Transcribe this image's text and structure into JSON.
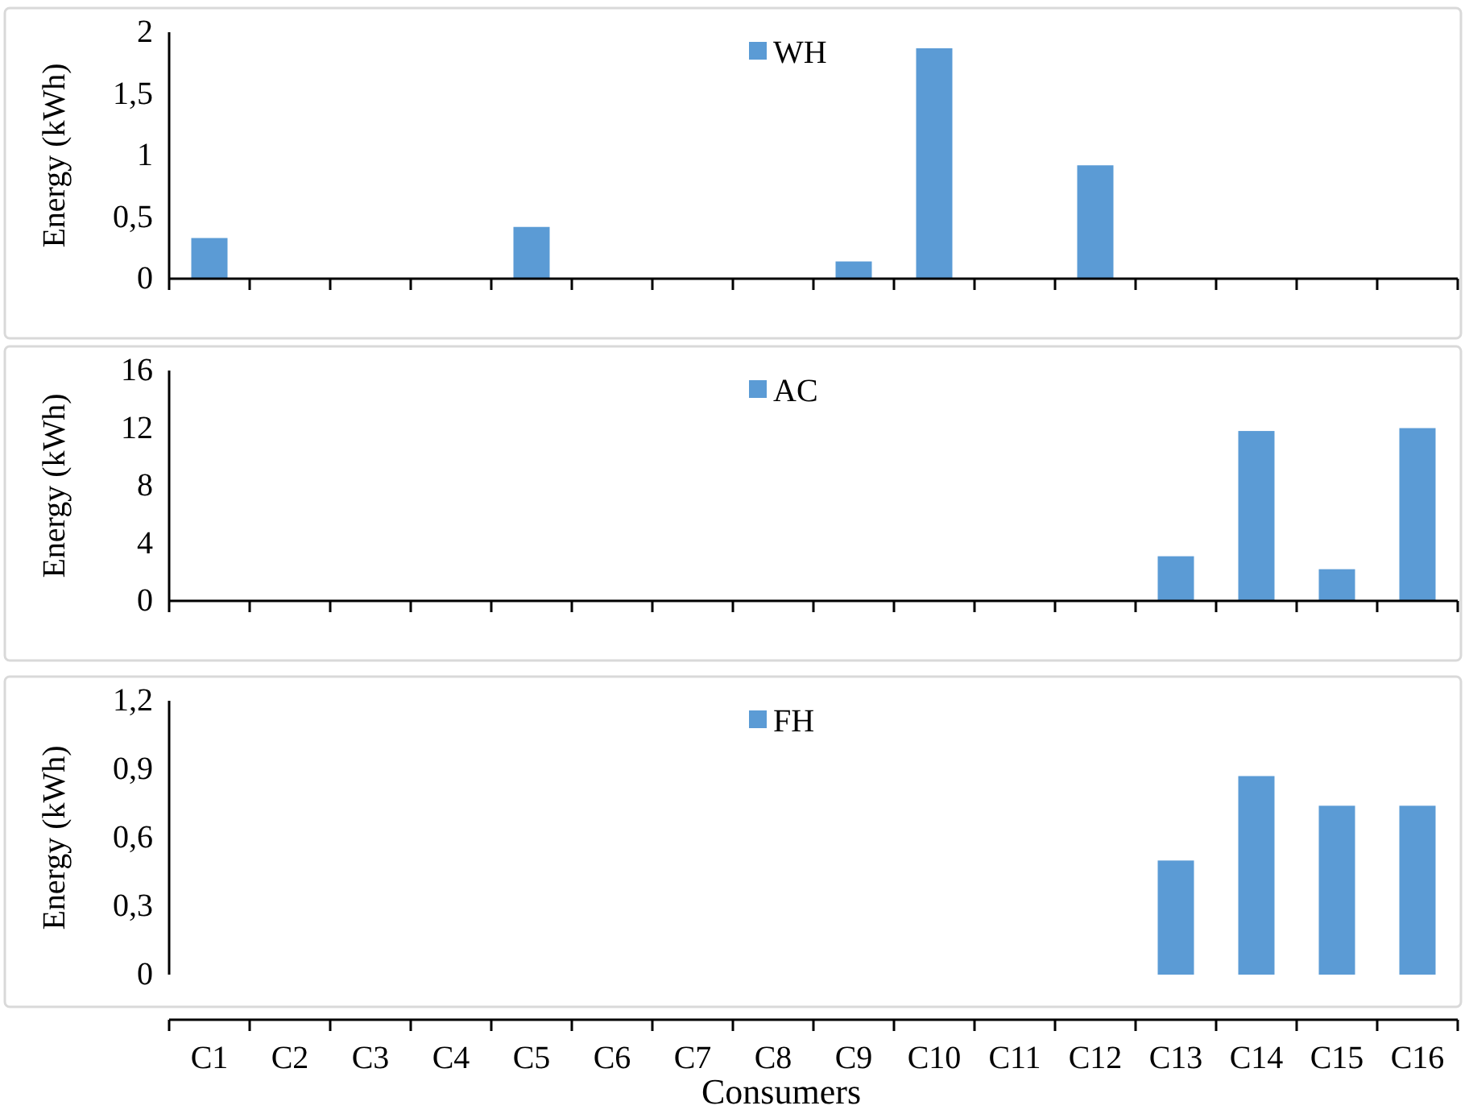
{
  "chart_data": [
    {
      "type": "bar",
      "categories": [
        null,
        null,
        null,
        null,
        null,
        null,
        null,
        null,
        null,
        null,
        null,
        null,
        null,
        null,
        null,
        null
      ],
      "ylabel": "Energy (kWh)",
      "ylim": [
        0,
        2
      ],
      "yticks": [
        0,
        {
          "value": 0.5,
          "label": "0,5"
        },
        1,
        {
          "value": 1.5,
          "label": "1,5"
        },
        2
      ],
      "legend": "top",
      "tick_labels": "y",
      "series": [
        {
          "name": "WH",
          "color": "#5b9bd5",
          "values": [
            0.33,
            0,
            0,
            0,
            0.42,
            0,
            0,
            0,
            0.14,
            1.87,
            0,
            0.92,
            0,
            0,
            0,
            0
          ]
        }
      ]
    },
    {
      "type": "bar",
      "categories": [
        null,
        null,
        null,
        null,
        null,
        null,
        null,
        null,
        null,
        null,
        null,
        null,
        null,
        null,
        null,
        null
      ],
      "ylabel": "Energy (kWh)",
      "ylim": [
        0,
        16
      ],
      "yticks": [
        0,
        4,
        8,
        12,
        16
      ],
      "legend": "top",
      "tick_labels": "y",
      "series": [
        {
          "name": "AC",
          "color": "#5b9bd5",
          "values": [
            0,
            0,
            0,
            0,
            0,
            0,
            0,
            0,
            0,
            0,
            0,
            0,
            3.1,
            11.8,
            2.2,
            12
          ]
        }
      ]
    },
    {
      "type": "bar",
      "categories": [
        "C1",
        "C2",
        "C3",
        "C4",
        "C5",
        "C6",
        "C7",
        "C8",
        "C9",
        "C10",
        "C11",
        "C12",
        "C13",
        "C14",
        "C15",
        "C16"
      ],
      "xlabel": "Consumers",
      "ylabel": "Energy (kWh)",
      "ylim": [
        0,
        1.2
      ],
      "yticks": [
        0,
        {
          "value": 0.3,
          "label": "0,3"
        },
        {
          "value": 0.6,
          "label": "0,6"
        },
        {
          "value": 0.9,
          "label": "0,9"
        },
        {
          "value": 1.2,
          "label": "1,2"
        }
      ],
      "legend": "top",
      "series": [
        {
          "name": "FH",
          "color": "#5b9bd5",
          "values": [
            0,
            0,
            0,
            0,
            0,
            0,
            0,
            0,
            0,
            0,
            0,
            0,
            0.5,
            0.87,
            0.74,
            0.74
          ]
        }
      ]
    }
  ]
}
